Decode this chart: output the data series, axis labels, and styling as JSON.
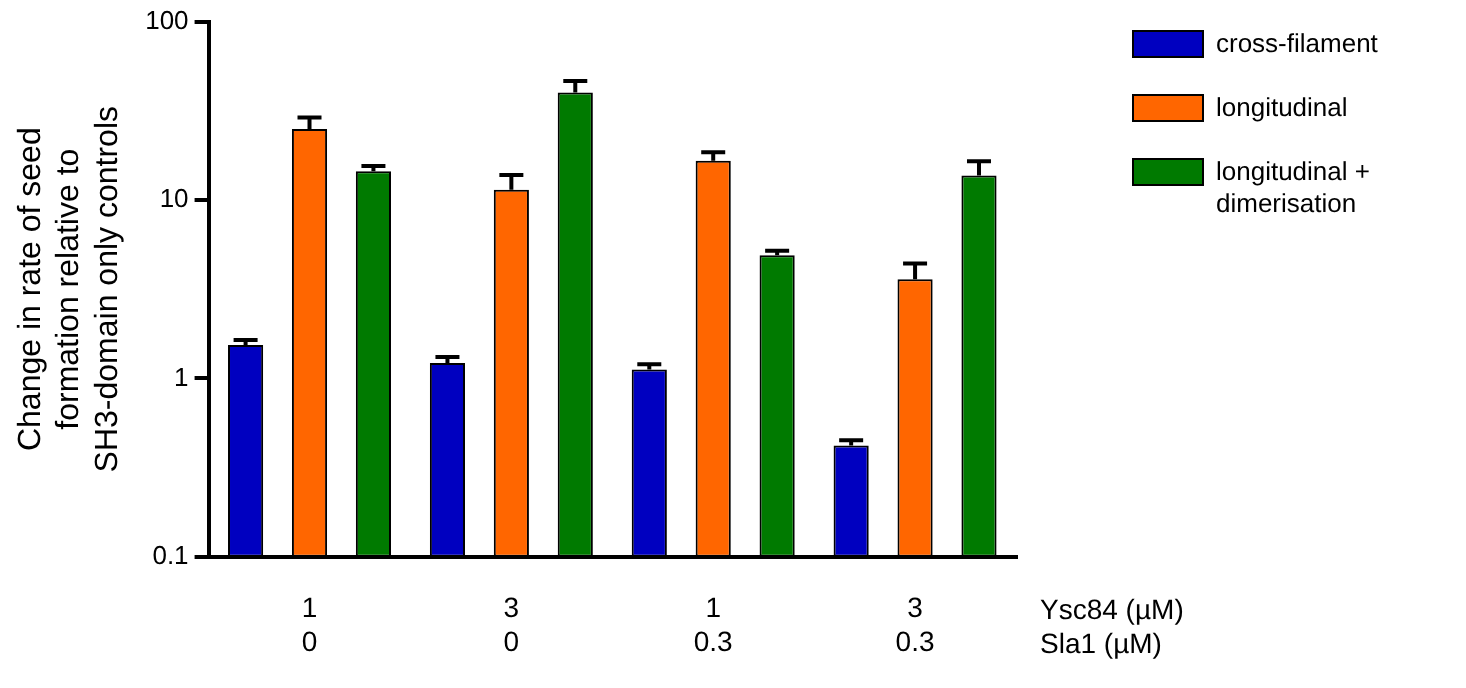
{
  "chart_data": {
    "type": "bar",
    "ylabel": "Change in rate of seed formation relative to SH3-domain only controls",
    "categories": [
      "1\n0",
      "3\n0",
      "1\n0.3",
      "3\n0.3"
    ],
    "series": [
      {
        "name": "cross-filament",
        "color": "#0000c0",
        "values": [
          1.54,
          1.22,
          1.12,
          0.42
        ],
        "errors": [
          0.1,
          0.1,
          0.08,
          0.03
        ]
      },
      {
        "name": "longitudinal",
        "color": "#ff6600",
        "values": [
          25,
          11.4,
          16.6,
          3.6
        ],
        "errors": [
          4,
          2.4,
          1.9,
          0.8
        ]
      },
      {
        "name": "longitudinal + dimerisation",
        "color": "#007a00",
        "values": [
          14.5,
          40,
          4.9,
          13.7
        ],
        "errors": [
          1,
          6.5,
          0.3,
          2.8
        ]
      }
    ],
    "annotations": [
      "Ysc84 (µM)",
      "Sla1 (µM)"
    ],
    "log": "y",
    "ylim": [
      0.1,
      100
    ],
    "yticks": [
      0.1,
      1,
      10,
      100
    ],
    "grid": false,
    "legend": "right"
  }
}
